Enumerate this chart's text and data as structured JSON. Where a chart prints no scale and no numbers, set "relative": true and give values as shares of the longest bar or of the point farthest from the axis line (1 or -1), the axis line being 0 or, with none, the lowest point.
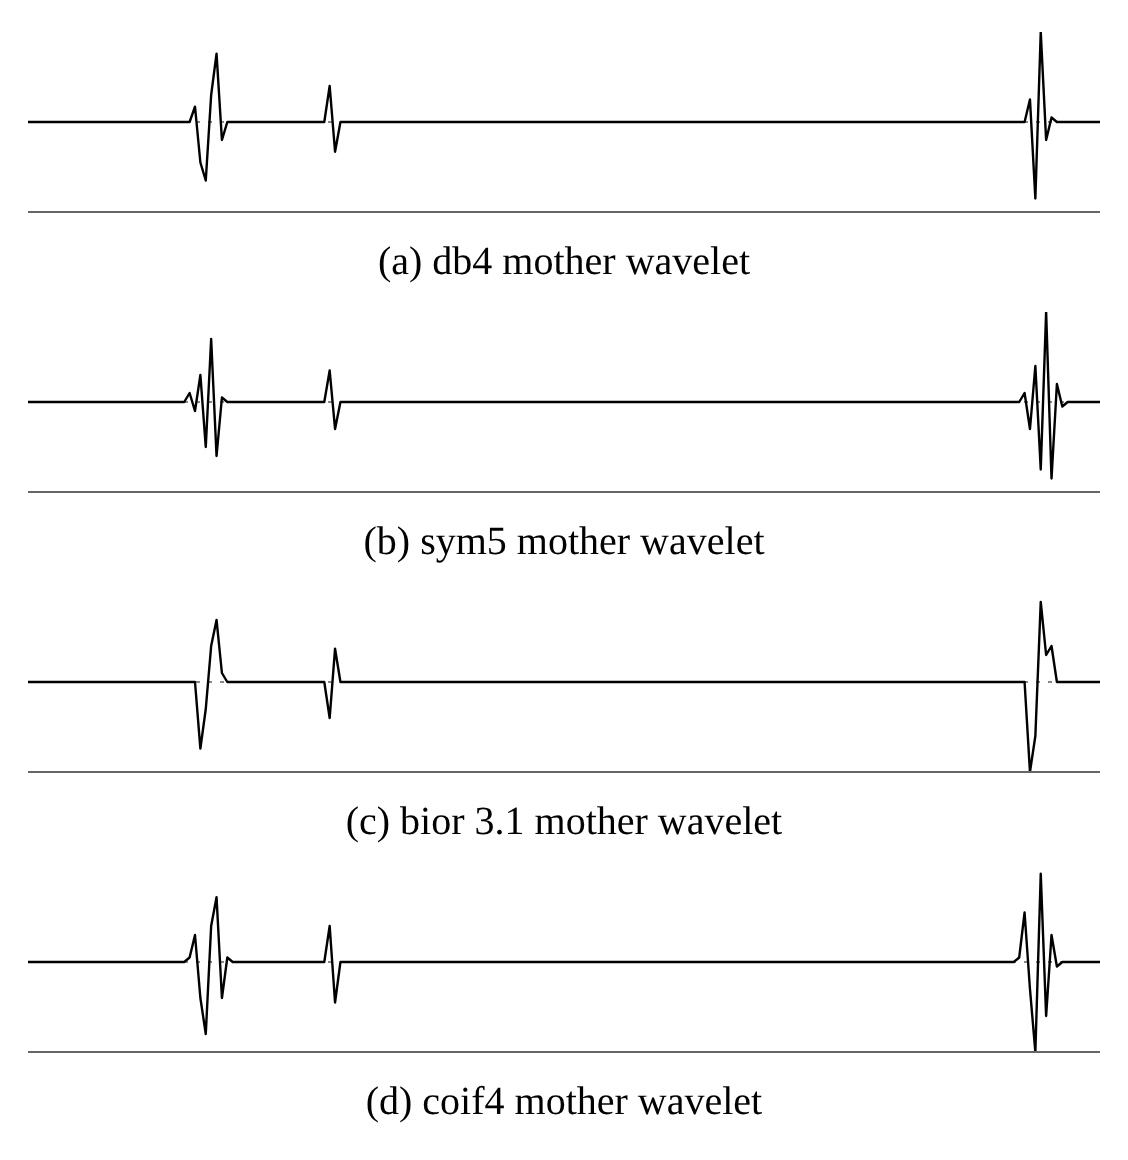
{
  "chart_data": [
    {
      "type": "line",
      "title": "(a) db4 mother wavelet",
      "relative": true,
      "ref_lines": [
        {
          "axis": "y",
          "value": 0,
          "color": "#888888",
          "line_style": "dotted"
        }
      ],
      "color": "#000000",
      "categories": [
        null,
        null,
        null,
        null,
        null,
        null,
        null,
        null,
        null,
        null,
        null,
        null,
        null,
        null,
        null,
        null,
        null,
        null,
        null,
        null,
        null,
        null,
        null,
        null,
        null,
        null,
        null,
        null,
        null,
        null,
        null,
        null,
        null,
        null,
        null,
        null,
        null,
        null,
        null,
        null,
        null,
        null,
        null,
        null,
        null,
        null,
        null,
        null,
        null,
        null,
        null,
        null,
        null,
        null,
        null,
        null,
        null,
        null,
        null,
        null,
        null,
        null,
        null,
        null,
        null,
        null,
        null,
        null,
        null,
        null,
        null,
        null,
        null,
        null,
        null,
        null,
        null,
        null,
        null,
        null,
        null,
        null,
        null,
        null,
        null,
        null,
        null,
        null,
        null,
        null,
        null,
        null,
        null,
        null,
        null,
        null,
        null,
        null,
        null,
        null,
        null,
        null,
        null,
        null,
        null,
        null,
        null,
        null,
        null,
        null,
        null,
        null,
        null,
        null,
        null,
        null,
        null,
        null,
        null,
        null,
        null,
        null,
        null,
        null,
        null,
        null,
        null,
        null,
        null,
        null,
        null,
        null,
        null,
        null,
        null,
        null,
        null,
        null,
        null,
        null,
        null,
        null,
        null,
        null,
        null,
        null,
        null,
        null,
        null,
        null,
        null,
        null,
        null,
        null,
        null,
        null,
        null,
        null,
        null,
        null,
        null,
        null,
        null,
        null,
        null,
        null,
        null,
        null,
        null,
        null,
        null,
        null,
        null,
        null,
        null,
        null,
        null,
        null,
        null,
        null,
        null,
        null,
        null,
        null,
        null,
        null,
        null,
        null,
        null,
        null,
        null,
        null,
        null,
        null,
        null,
        null,
        null,
        null,
        null,
        null
      ],
      "values": [
        0,
        0,
        0,
        0,
        0,
        0,
        0,
        0,
        0,
        0,
        0,
        0,
        0,
        0,
        0,
        0,
        0,
        0,
        0,
        0,
        0,
        0,
        0,
        0,
        0,
        0,
        0,
        0,
        0,
        0,
        0,
        0.17,
        -0.45,
        -0.65,
        0.3,
        0.76,
        -0.2,
        0,
        0,
        0,
        0,
        0,
        0,
        0,
        0,
        0,
        0,
        0,
        0,
        0,
        0,
        0,
        0,
        0,
        0,
        0,
        0.4,
        -0.33,
        0,
        0,
        0,
        0,
        0,
        0,
        0,
        0,
        0,
        0,
        0,
        0,
        0,
        0,
        0,
        0,
        0,
        0,
        0,
        0,
        0,
        0,
        0,
        0,
        0,
        0,
        0,
        0,
        0,
        0,
        0,
        0,
        0,
        0,
        0,
        0,
        0,
        0,
        0,
        0,
        0,
        0,
        0,
        0,
        0,
        0,
        0,
        0,
        0,
        0,
        0,
        0,
        0,
        0,
        0,
        0,
        0,
        0,
        0,
        0,
        0,
        0,
        0,
        0,
        0,
        0,
        0,
        0,
        0,
        0,
        0,
        0,
        0,
        0,
        0,
        0,
        0,
        0,
        0,
        0,
        0,
        0,
        0,
        0,
        0,
        0,
        0,
        0,
        0,
        0,
        0,
        0,
        0,
        0,
        0,
        0,
        0,
        0,
        0,
        0,
        0,
        0,
        0,
        0,
        0,
        0,
        0,
        0,
        0,
        0,
        0,
        0,
        0,
        0,
        0,
        0,
        0,
        0,
        0,
        0,
        0,
        0,
        0,
        0,
        0,
        0,
        0,
        0,
        0.25,
        -0.85,
        1,
        -0.2,
        0.05,
        0,
        0,
        0,
        0,
        0,
        0,
        0,
        0,
        0
      ]
    },
    {
      "type": "line",
      "title": "(b) sym5 mother wavelet",
      "relative": true,
      "ref_lines": [
        {
          "axis": "y",
          "value": 0,
          "color": "#888888",
          "line_style": "dotted"
        }
      ],
      "color": "#000000",
      "categories": [
        null,
        null,
        null,
        null,
        null,
        null,
        null,
        null,
        null,
        null,
        null,
        null,
        null,
        null,
        null,
        null,
        null,
        null,
        null,
        null,
        null,
        null,
        null,
        null,
        null,
        null,
        null,
        null,
        null,
        null,
        null,
        null,
        null,
        null,
        null,
        null,
        null,
        null,
        null,
        null,
        null,
        null,
        null,
        null,
        null,
        null,
        null,
        null,
        null,
        null,
        null,
        null,
        null,
        null,
        null,
        null,
        null,
        null,
        null,
        null,
        null,
        null,
        null,
        null,
        null,
        null,
        null,
        null,
        null,
        null,
        null,
        null,
        null,
        null,
        null,
        null,
        null,
        null,
        null,
        null,
        null,
        null,
        null,
        null,
        null,
        null,
        null,
        null,
        null,
        null,
        null,
        null,
        null,
        null,
        null,
        null,
        null,
        null,
        null,
        null,
        null,
        null,
        null,
        null,
        null,
        null,
        null,
        null,
        null,
        null,
        null,
        null,
        null,
        null,
        null,
        null,
        null,
        null,
        null,
        null,
        null,
        null,
        null,
        null,
        null,
        null,
        null,
        null,
        null,
        null,
        null,
        null,
        null,
        null,
        null,
        null,
        null,
        null,
        null,
        null,
        null,
        null,
        null,
        null,
        null,
        null,
        null,
        null,
        null,
        null,
        null,
        null,
        null,
        null,
        null,
        null,
        null,
        null,
        null,
        null,
        null,
        null,
        null,
        null,
        null,
        null,
        null,
        null,
        null,
        null,
        null,
        null,
        null,
        null,
        null,
        null,
        null,
        null,
        null,
        null,
        null,
        null,
        null,
        null,
        null,
        null,
        null,
        null,
        null,
        null,
        null,
        null,
        null,
        null,
        null,
        null,
        null,
        null,
        null,
        null
      ],
      "values": [
        0,
        0,
        0,
        0,
        0,
        0,
        0,
        0,
        0,
        0,
        0,
        0,
        0,
        0,
        0,
        0,
        0,
        0,
        0,
        0,
        0,
        0,
        0,
        0,
        0,
        0,
        0,
        0,
        0,
        0,
        0.1,
        -0.1,
        0.3,
        -0.5,
        0.7,
        -0.6,
        0.05,
        0,
        0,
        0,
        0,
        0,
        0,
        0,
        0,
        0,
        0,
        0,
        0,
        0,
        0,
        0,
        0,
        0,
        0,
        0,
        0.35,
        -0.3,
        0,
        0,
        0,
        0,
        0,
        0,
        0,
        0,
        0,
        0,
        0,
        0,
        0,
        0,
        0,
        0,
        0,
        0,
        0,
        0,
        0,
        0,
        0,
        0,
        0,
        0,
        0,
        0,
        0,
        0,
        0,
        0,
        0,
        0,
        0,
        0,
        0,
        0,
        0,
        0,
        0,
        0,
        0,
        0,
        0,
        0,
        0,
        0,
        0,
        0,
        0,
        0,
        0,
        0,
        0,
        0,
        0,
        0,
        0,
        0,
        0,
        0,
        0,
        0,
        0,
        0,
        0,
        0,
        0,
        0,
        0,
        0,
        0,
        0,
        0,
        0,
        0,
        0,
        0,
        0,
        0,
        0,
        0,
        0,
        0,
        0,
        0,
        0,
        0,
        0,
        0,
        0,
        0,
        0,
        0,
        0,
        0,
        0,
        0,
        0,
        0,
        0,
        0,
        0,
        0,
        0,
        0,
        0,
        0,
        0,
        0,
        0,
        0,
        0,
        0,
        0,
        0,
        0,
        0,
        0,
        0,
        0,
        0,
        0,
        0,
        0,
        0,
        0.1,
        -0.3,
        0.4,
        -0.75,
        1,
        -0.85,
        0.2,
        -0.05,
        0,
        0,
        0,
        0,
        0,
        0,
        0
      ]
    },
    {
      "type": "line",
      "title": "(c) bior 3.1 mother wavelet",
      "relative": true,
      "ref_lines": [
        {
          "axis": "y",
          "value": 0,
          "color": "#888888",
          "line_style": "dotted"
        }
      ],
      "color": "#000000",
      "categories": [
        null,
        null,
        null,
        null,
        null,
        null,
        null,
        null,
        null,
        null,
        null,
        null,
        null,
        null,
        null,
        null,
        null,
        null,
        null,
        null,
        null,
        null,
        null,
        null,
        null,
        null,
        null,
        null,
        null,
        null,
        null,
        null,
        null,
        null,
        null,
        null,
        null,
        null,
        null,
        null,
        null,
        null,
        null,
        null,
        null,
        null,
        null,
        null,
        null,
        null,
        null,
        null,
        null,
        null,
        null,
        null,
        null,
        null,
        null,
        null,
        null,
        null,
        null,
        null,
        null,
        null,
        null,
        null,
        null,
        null,
        null,
        null,
        null,
        null,
        null,
        null,
        null,
        null,
        null,
        null,
        null,
        null,
        null,
        null,
        null,
        null,
        null,
        null,
        null,
        null,
        null,
        null,
        null,
        null,
        null,
        null,
        null,
        null,
        null,
        null,
        null,
        null,
        null,
        null,
        null,
        null,
        null,
        null,
        null,
        null,
        null,
        null,
        null,
        null,
        null,
        null,
        null,
        null,
        null,
        null,
        null,
        null,
        null,
        null,
        null,
        null,
        null,
        null,
        null,
        null,
        null,
        null,
        null,
        null,
        null,
        null,
        null,
        null,
        null,
        null,
        null,
        null,
        null,
        null,
        null,
        null,
        null,
        null,
        null,
        null,
        null,
        null,
        null,
        null,
        null,
        null,
        null,
        null,
        null,
        null,
        null,
        null,
        null,
        null,
        null,
        null,
        null,
        null,
        null,
        null,
        null,
        null,
        null,
        null,
        null,
        null,
        null,
        null,
        null,
        null,
        null,
        null,
        null,
        null,
        null,
        null,
        null,
        null,
        null,
        null,
        null,
        null,
        null,
        null,
        null,
        null,
        null,
        null,
        null,
        null
      ],
      "values": [
        0,
        0,
        0,
        0,
        0,
        0,
        0,
        0,
        0,
        0,
        0,
        0,
        0,
        0,
        0,
        0,
        0,
        0,
        0,
        0,
        0,
        0,
        0,
        0,
        0,
        0,
        0,
        0,
        0,
        0,
        0,
        0,
        -0.74,
        -0.3,
        0.4,
        0.69,
        0.1,
        0,
        0,
        0,
        0,
        0,
        0,
        0,
        0,
        0,
        0,
        0,
        0,
        0,
        0,
        0,
        0,
        0,
        0,
        0,
        -0.4,
        0.37,
        0,
        0,
        0,
        0,
        0,
        0,
        0,
        0,
        0,
        0,
        0,
        0,
        0,
        0,
        0,
        0,
        0,
        0,
        0,
        0,
        0,
        0,
        0,
        0,
        0,
        0,
        0,
        0,
        0,
        0,
        0,
        0,
        0,
        0,
        0,
        0,
        0,
        0,
        0,
        0,
        0,
        0,
        0,
        0,
        0,
        0,
        0,
        0,
        0,
        0,
        0,
        0,
        0,
        0,
        0,
        0,
        0,
        0,
        0,
        0,
        0,
        0,
        0,
        0,
        0,
        0,
        0,
        0,
        0,
        0,
        0,
        0,
        0,
        0,
        0,
        0,
        0,
        0,
        0,
        0,
        0,
        0,
        0,
        0,
        0,
        0,
        0,
        0,
        0,
        0,
        0,
        0,
        0,
        0,
        0,
        0,
        0,
        0,
        0,
        0,
        0,
        0,
        0,
        0,
        0,
        0,
        0,
        0,
        0,
        0,
        0,
        0,
        0,
        0,
        0,
        0,
        0,
        0,
        0,
        0,
        0,
        0,
        0,
        0,
        0,
        0,
        0,
        0,
        -1,
        -0.6,
        0.89,
        0.3,
        0.4,
        0,
        0,
        0,
        0,
        0,
        0,
        0,
        0,
        0
      ]
    },
    {
      "type": "line",
      "title": "(d) coif4 mother wavelet",
      "relative": true,
      "ref_lines": [
        {
          "axis": "y",
          "value": 0,
          "color": "#888888",
          "line_style": "dotted"
        }
      ],
      "color": "#000000",
      "categories": [
        null,
        null,
        null,
        null,
        null,
        null,
        null,
        null,
        null,
        null,
        null,
        null,
        null,
        null,
        null,
        null,
        null,
        null,
        null,
        null,
        null,
        null,
        null,
        null,
        null,
        null,
        null,
        null,
        null,
        null,
        null,
        null,
        null,
        null,
        null,
        null,
        null,
        null,
        null,
        null,
        null,
        null,
        null,
        null,
        null,
        null,
        null,
        null,
        null,
        null,
        null,
        null,
        null,
        null,
        null,
        null,
        null,
        null,
        null,
        null,
        null,
        null,
        null,
        null,
        null,
        null,
        null,
        null,
        null,
        null,
        null,
        null,
        null,
        null,
        null,
        null,
        null,
        null,
        null,
        null,
        null,
        null,
        null,
        null,
        null,
        null,
        null,
        null,
        null,
        null,
        null,
        null,
        null,
        null,
        null,
        null,
        null,
        null,
        null,
        null,
        null,
        null,
        null,
        null,
        null,
        null,
        null,
        null,
        null,
        null,
        null,
        null,
        null,
        null,
        null,
        null,
        null,
        null,
        null,
        null,
        null,
        null,
        null,
        null,
        null,
        null,
        null,
        null,
        null,
        null,
        null,
        null,
        null,
        null,
        null,
        null,
        null,
        null,
        null,
        null,
        null,
        null,
        null,
        null,
        null,
        null,
        null,
        null,
        null,
        null,
        null,
        null,
        null,
        null,
        null,
        null,
        null,
        null,
        null,
        null,
        null,
        null,
        null,
        null,
        null,
        null,
        null,
        null,
        null,
        null,
        null,
        null,
        null,
        null,
        null,
        null,
        null,
        null,
        null,
        null,
        null,
        null,
        null,
        null,
        null,
        null,
        null,
        null,
        null,
        null,
        null,
        null,
        null,
        null,
        null,
        null,
        null,
        null,
        null,
        null
      ],
      "values": [
        0,
        0,
        0,
        0,
        0,
        0,
        0,
        0,
        0,
        0,
        0,
        0,
        0,
        0,
        0,
        0,
        0,
        0,
        0,
        0,
        0,
        0,
        0,
        0,
        0,
        0,
        0,
        0,
        0,
        0,
        0.05,
        0.3,
        -0.4,
        -0.8,
        0.4,
        0.72,
        -0.4,
        0.05,
        0,
        0,
        0,
        0,
        0,
        0,
        0,
        0,
        0,
        0,
        0,
        0,
        0,
        0,
        0,
        0,
        0,
        0,
        0.4,
        -0.45,
        0,
        0,
        0,
        0,
        0,
        0,
        0,
        0,
        0,
        0,
        0,
        0,
        0,
        0,
        0,
        0,
        0,
        0,
        0,
        0,
        0,
        0,
        0,
        0,
        0,
        0,
        0,
        0,
        0,
        0,
        0,
        0,
        0,
        0,
        0,
        0,
        0,
        0,
        0,
        0,
        0,
        0,
        0,
        0,
        0,
        0,
        0,
        0,
        0,
        0,
        0,
        0,
        0,
        0,
        0,
        0,
        0,
        0,
        0,
        0,
        0,
        0,
        0,
        0,
        0,
        0,
        0,
        0,
        0,
        0,
        0,
        0,
        0,
        0,
        0,
        0,
        0,
        0,
        0,
        0,
        0,
        0,
        0,
        0,
        0,
        0,
        0,
        0,
        0,
        0,
        0,
        0,
        0,
        0,
        0,
        0,
        0,
        0,
        0,
        0,
        0,
        0,
        0,
        0,
        0,
        0,
        0,
        0,
        0,
        0,
        0,
        0,
        0,
        0,
        0,
        0,
        0,
        0,
        0,
        0,
        0,
        0,
        0,
        0,
        0,
        0,
        0.05,
        0.55,
        -0.3,
        -1,
        0.98,
        -0.6,
        0.3,
        -0.05,
        0,
        0,
        0,
        0,
        0,
        0,
        0,
        0
      ]
    }
  ]
}
